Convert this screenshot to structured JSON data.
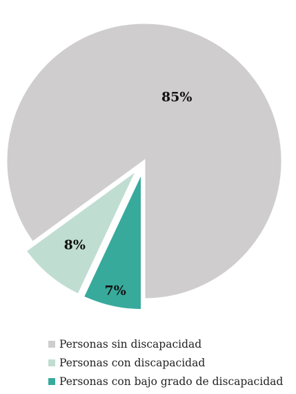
{
  "chart_data": {
    "type": "pie",
    "title": "",
    "legend_position": "bottom",
    "slices": [
      {
        "name": "Personas sin discapacidad",
        "value": 85,
        "label": "85%",
        "color": "#cfcdcd",
        "exploded": false
      },
      {
        "name": "Personas con discapacidad",
        "value": 8,
        "label": "8%",
        "color": "#c0ddd1",
        "exploded": true
      },
      {
        "name": "Personas con bajo grado de discapacidad",
        "value": 7,
        "label": "7%",
        "color": "#38aa9c",
        "exploded": true
      }
    ]
  }
}
